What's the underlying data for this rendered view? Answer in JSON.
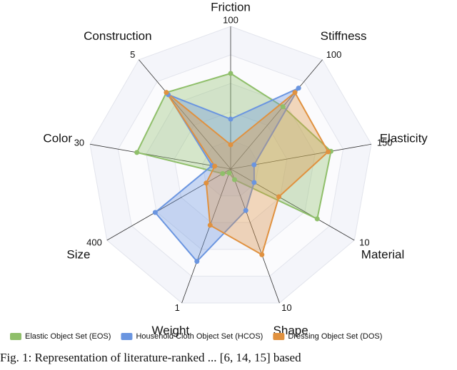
{
  "chart_data": {
    "type": "radar",
    "axes": [
      {
        "name": "Friction",
        "max": 100
      },
      {
        "name": "Stiffness",
        "max": 100
      },
      {
        "name": "Elasticity",
        "max": 150
      },
      {
        "name": "Material",
        "max": 10
      },
      {
        "name": "Shape",
        "max": 10
      },
      {
        "name": "Weight",
        "max": 1
      },
      {
        "name": "Size",
        "max": 400
      },
      {
        "name": "Color",
        "max": 30
      },
      {
        "name": "Construction",
        "max": 5
      }
    ],
    "series": [
      {
        "name": "Elastic Object Set (EOS)",
        "color": "#8fbf6a",
        "values": [
          67,
          57,
          107,
          7,
          0.8,
          0.03,
          26,
          20,
          3.5
        ]
      },
      {
        "name": "Household Cloth Object Set (HCOS)",
        "color": "#6a95e0",
        "values": [
          35,
          74,
          25,
          1.9,
          3.1,
          0.69,
          244,
          4,
          3.4
        ]
      },
      {
        "name": "Dressing Object Set (DOS)",
        "color": "#e0913f",
        "values": [
          17,
          70,
          104,
          3.9,
          6.4,
          0.42,
          79,
          3.4,
          3.5
        ]
      }
    ],
    "legend": "bottom",
    "caption": "Fig. 1: Representation of literature-ranked ... [6, 14, 15] based"
  }
}
